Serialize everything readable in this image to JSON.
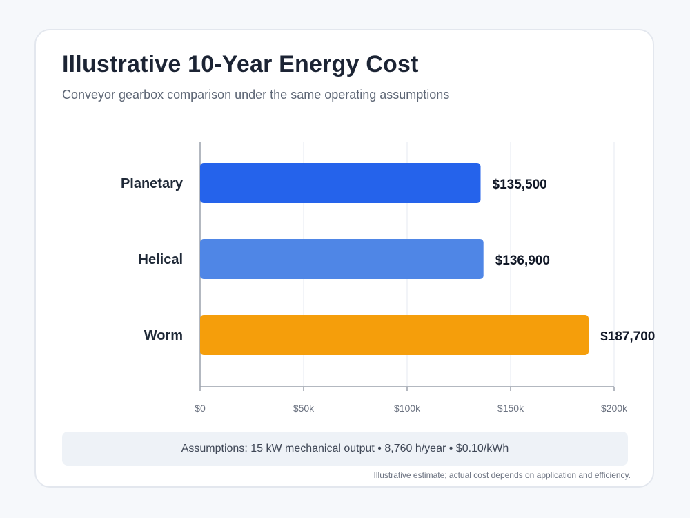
{
  "card": {
    "title": "Illustrative 10-Year Energy Cost",
    "subtitle": "Conveyor gearbox comparison under the same operating assumptions",
    "assumptions": "Assumptions: 15 kW mechanical output • 8,760 h/year • $0.10/kWh",
    "footnote": "Illustrative estimate; actual cost depends on application and efficiency."
  },
  "chart_data": {
    "type": "bar",
    "orientation": "horizontal",
    "title": "Illustrative 10-Year Energy Cost",
    "subtitle": "Conveyor gearbox comparison under the same operating assumptions",
    "categories": [
      "Planetary",
      "Helical",
      "Worm"
    ],
    "values": [
      135500,
      136900,
      187700
    ],
    "value_labels": [
      "$135,500",
      "$136,900",
      "$187,700"
    ],
    "colors": [
      "#2563eb",
      "#4f86e6",
      "#f59e0b"
    ],
    "xlim": [
      0,
      200000
    ],
    "xticks": [
      0,
      50000,
      100000,
      150000,
      200000
    ],
    "xtick_labels": [
      "$0",
      "$50k",
      "$100k",
      "$150k",
      "$200k"
    ],
    "xlabel": "",
    "ylabel": "",
    "grid": true,
    "legend": "none"
  }
}
